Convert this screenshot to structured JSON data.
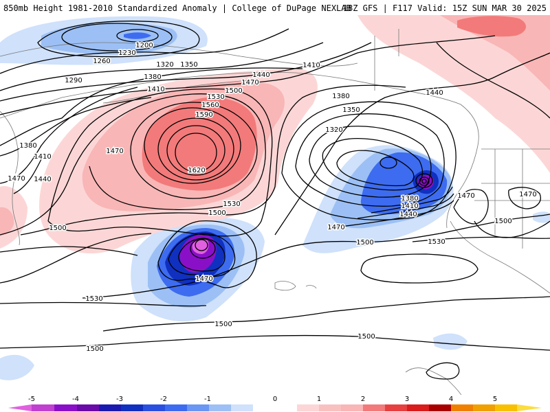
{
  "header": {
    "title_left": "850mb Height 1981-2010 Standardized Anomaly | College of DuPage NEXLAB",
    "title_right": "18Z GFS | F117 Valid: 15Z SUN MAR 30 2025"
  },
  "map": {
    "contour_labels": [
      "1200",
      "1230",
      "1260",
      "1290",
      "1320",
      "1350",
      "1380",
      "1410",
      "1440",
      "1470",
      "1500",
      "1530",
      "1560",
      "1590",
      "1620",
      "1380",
      "1410",
      "1440",
      "1470",
      "1500",
      "1530",
      "1320",
      "1350",
      "1380",
      "1410",
      "1440",
      "1470",
      "1500",
      "1530",
      "1470",
      "1500",
      "1530",
      "1500",
      "1500",
      "1500",
      "1470",
      "1470",
      "1500",
      "1380",
      "1410",
      "1440",
      "1470"
    ],
    "colors": {
      "neg5": "#e060e0",
      "neg4": "#8a10c8",
      "neg3": "#1030c0",
      "neg2": "#3d6cf0",
      "neg1": "#9cc0f5",
      "neg05": "#cfe1fb",
      "pos05": "#fcd6d6",
      "pos1": "#f9b6b6",
      "pos2": "#f37a7a",
      "pos3": "#d91c1c",
      "pos4": "#a80000",
      "pos5": "#f0a000"
    }
  },
  "colorbar": {
    "ticks": [
      "-5",
      "-4",
      "-3",
      "-2",
      "-1",
      "0",
      "1",
      "2",
      "3",
      "4",
      "5"
    ]
  }
}
